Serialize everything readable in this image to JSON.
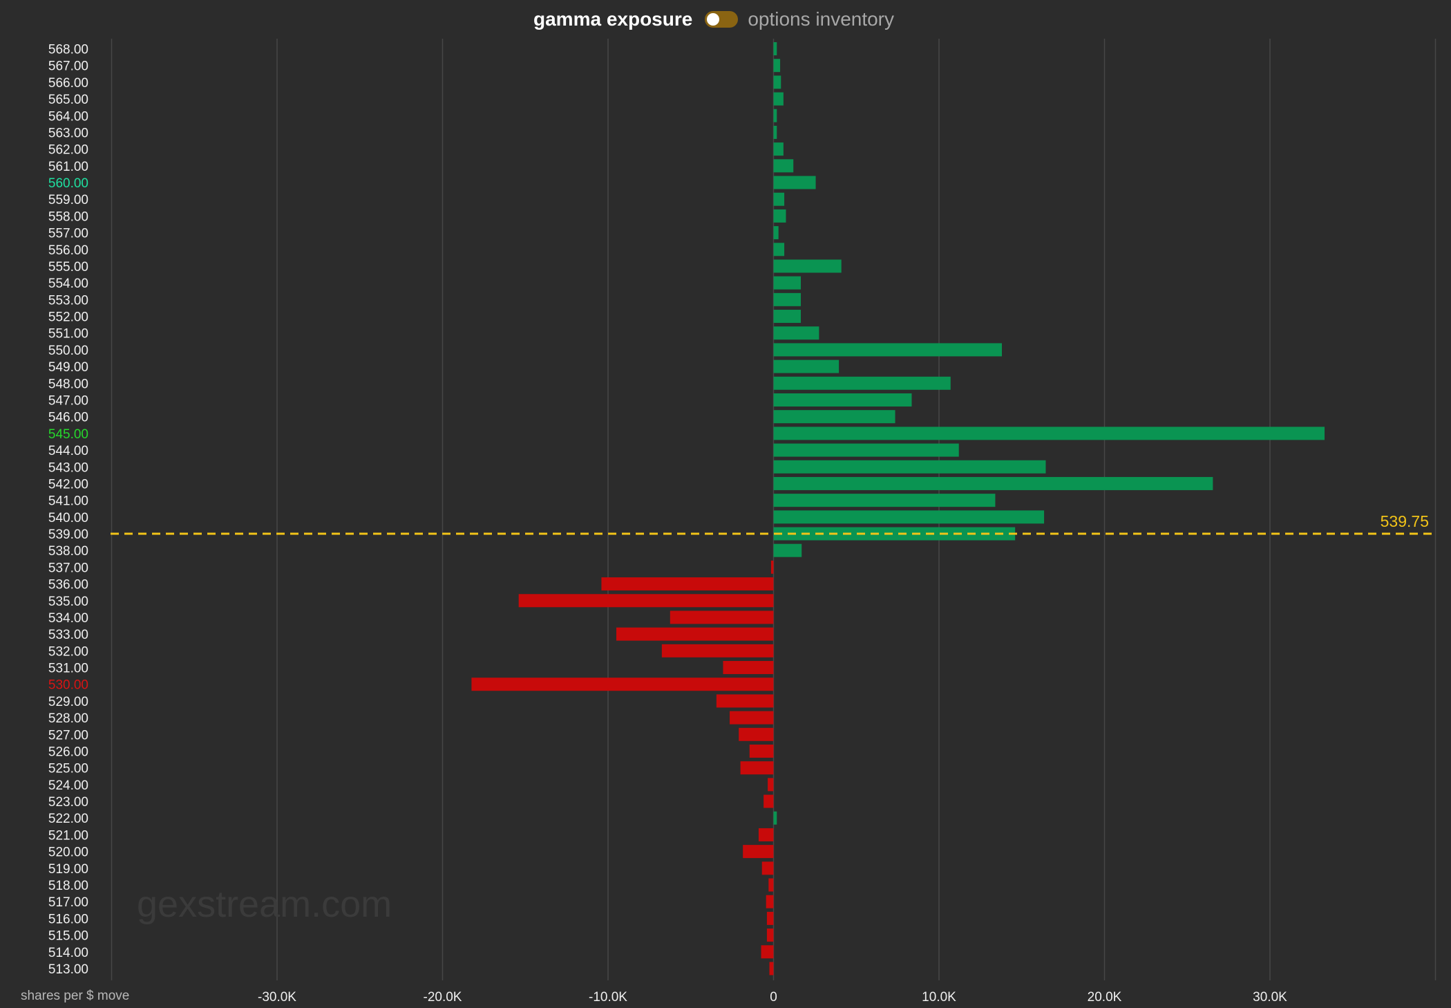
{
  "header": {
    "left_label": "gamma exposure",
    "right_label": "options inventory",
    "toggle_color": "#8a6412"
  },
  "colors": {
    "background": "#2c2c2c",
    "positive_bar": "#0a9452",
    "negative_bar": "#c80a0a",
    "spot_line": "#f2c418",
    "gridline": "#474747",
    "tick_default": "#f0f0f0",
    "highlight_call_wall": "#1fe0a0",
    "highlight_max_gamma": "#26d82c",
    "highlight_put_wall": "#d81414"
  },
  "watermark": "gexstream.com",
  "chart_data": {
    "type": "bar",
    "orientation": "horizontal",
    "xlabel": "shares per $ move",
    "xlim": [
      -40000,
      40000
    ],
    "xticks": [
      {
        "value": -30000,
        "label": "-30.0K"
      },
      {
        "value": -20000,
        "label": "-20.0K"
      },
      {
        "value": -10000,
        "label": "-10.0K"
      },
      {
        "value": 0,
        "label": "0"
      },
      {
        "value": 10000,
        "label": "10.0K"
      },
      {
        "value": 20000,
        "label": "20.0K"
      },
      {
        "value": 30000,
        "label": "30.0K"
      }
    ],
    "grid": true,
    "spot_price": {
      "value": 539.0,
      "label": "539.75"
    },
    "highlighted_strikes": [
      {
        "strike": "560.00",
        "color_key": "highlight_call_wall"
      },
      {
        "strike": "545.00",
        "color_key": "highlight_max_gamma"
      },
      {
        "strike": "530.00",
        "color_key": "highlight_put_wall"
      }
    ],
    "categories": [
      "568.00",
      "567.00",
      "566.00",
      "565.00",
      "564.00",
      "563.00",
      "562.00",
      "561.00",
      "560.00",
      "559.00",
      "558.00",
      "557.00",
      "556.00",
      "555.00",
      "554.00",
      "553.00",
      "552.00",
      "551.00",
      "550.00",
      "549.00",
      "548.00",
      "547.00",
      "546.00",
      "545.00",
      "544.00",
      "543.00",
      "542.00",
      "541.00",
      "540.00",
      "539.00",
      "538.00",
      "537.00",
      "536.00",
      "535.00",
      "534.00",
      "533.00",
      "532.00",
      "531.00",
      "530.00",
      "529.00",
      "528.00",
      "527.00",
      "526.00",
      "525.00",
      "524.00",
      "523.00",
      "522.00",
      "521.00",
      "520.00",
      "519.00",
      "518.00",
      "517.00",
      "516.00",
      "515.00",
      "514.00",
      "513.00"
    ],
    "values": [
      200,
      400,
      450,
      600,
      200,
      200,
      600,
      1200,
      2550,
      650,
      750,
      300,
      650,
      4100,
      1650,
      1650,
      1650,
      2750,
      13800,
      3950,
      10700,
      8350,
      7350,
      33300,
      11200,
      16450,
      26550,
      13400,
      16350,
      14600,
      1700,
      -150,
      -10400,
      -15400,
      -6250,
      -9500,
      -6750,
      -3050,
      -18250,
      -3450,
      -2650,
      -2100,
      -1450,
      -2000,
      -350,
      -600,
      200,
      -900,
      -1850,
      -700,
      -300,
      -450,
      -400,
      -400,
      -750,
      -250
    ]
  }
}
